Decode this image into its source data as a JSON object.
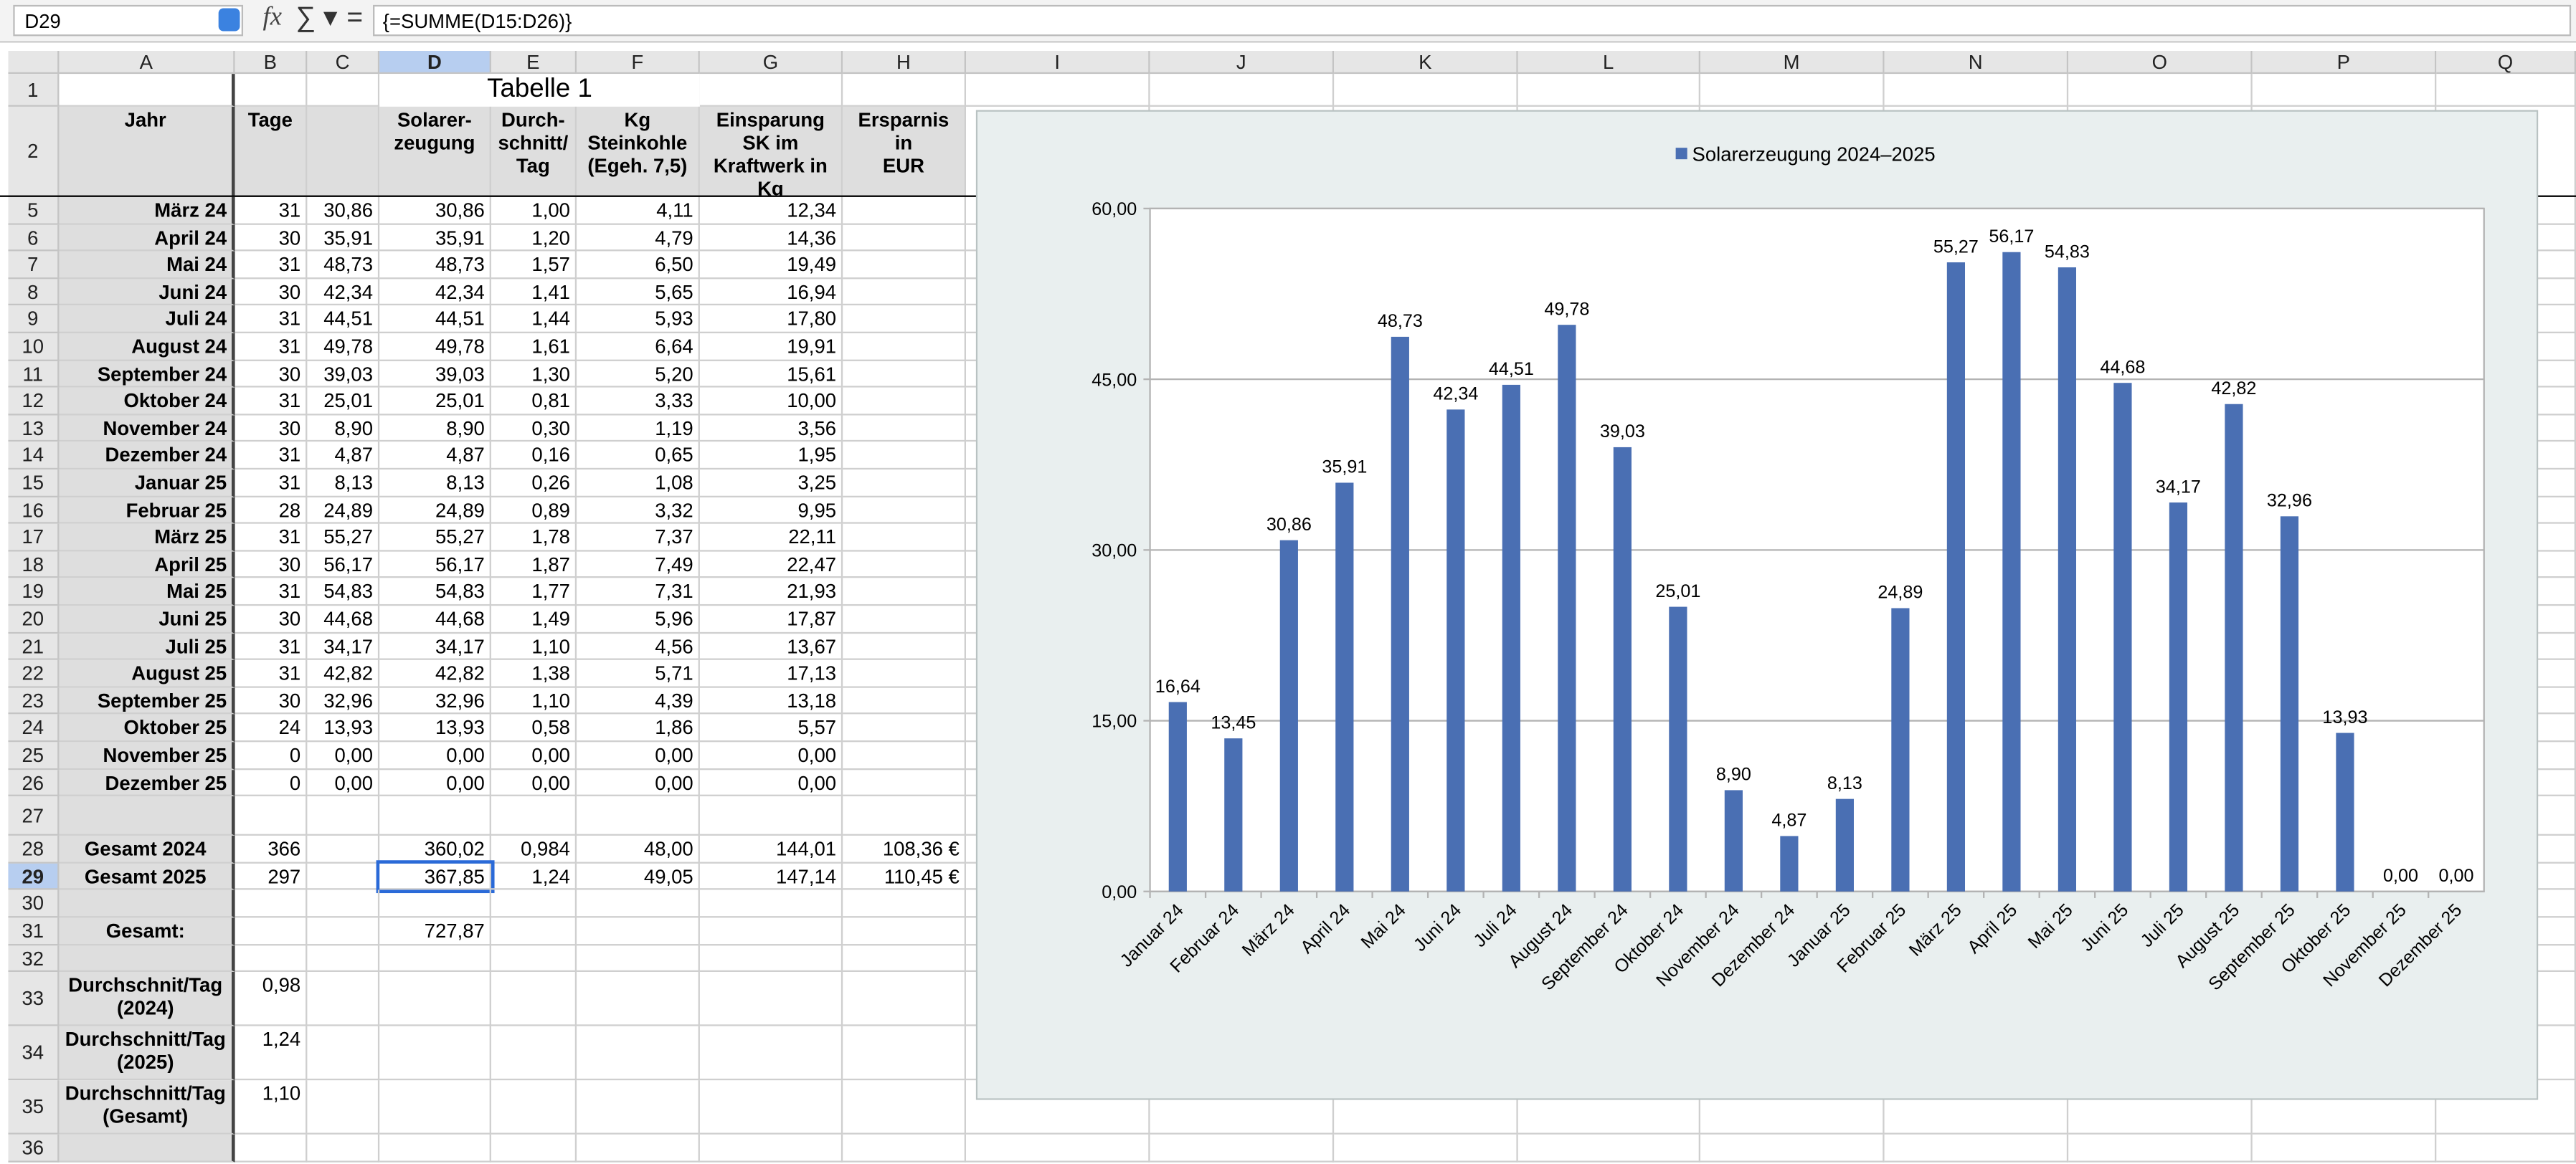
{
  "toolbar": {
    "name_box": "D29",
    "formula": "{=SUMME(D15:D26)}"
  },
  "columns": [
    "A",
    "B",
    "C",
    "D",
    "E",
    "F",
    "G",
    "H",
    "I",
    "J",
    "K",
    "L",
    "M",
    "N",
    "O",
    "P",
    "Q"
  ],
  "rows": [
    {
      "number": 1,
      "title": "Tabelle 1"
    },
    {
      "number": 2,
      "cells": [
        "Jahr",
        "Tage",
        null,
        "Solarer-\nzeugung",
        "Durch-\nschnitt/\nTag",
        "Kg\nSteinkohle\n(Egeh. 7,5)",
        "Einsparung\nSK im\nKraftwerk in\nKg",
        "Ersparnis in\nEUR"
      ]
    },
    {
      "number": 5,
      "cells": [
        "März 24",
        "31",
        "30,86",
        "30,86",
        "1,00",
        "4,11",
        "12,34",
        null
      ]
    },
    {
      "number": 6,
      "cells": [
        "April 24",
        "30",
        "35,91",
        "35,91",
        "1,20",
        "4,79",
        "14,36",
        null
      ]
    },
    {
      "number": 7,
      "cells": [
        "Mai 24",
        "31",
        "48,73",
        "48,73",
        "1,57",
        "6,50",
        "19,49",
        null
      ]
    },
    {
      "number": 8,
      "cells": [
        "Juni 24",
        "30",
        "42,34",
        "42,34",
        "1,41",
        "5,65",
        "16,94",
        null
      ]
    },
    {
      "number": 9,
      "cells": [
        "Juli 24",
        "31",
        "44,51",
        "44,51",
        "1,44",
        "5,93",
        "17,80",
        null
      ]
    },
    {
      "number": 10,
      "cells": [
        "August 24",
        "31",
        "49,78",
        "49,78",
        "1,61",
        "6,64",
        "19,91",
        null
      ]
    },
    {
      "number": 11,
      "cells": [
        "September 24",
        "30",
        "39,03",
        "39,03",
        "1,30",
        "5,20",
        "15,61",
        null
      ]
    },
    {
      "number": 12,
      "cells": [
        "Oktober 24",
        "31",
        "25,01",
        "25,01",
        "0,81",
        "3,33",
        "10,00",
        null
      ]
    },
    {
      "number": 13,
      "cells": [
        "November 24",
        "30",
        "8,90",
        "8,90",
        "0,30",
        "1,19",
        "3,56",
        null
      ]
    },
    {
      "number": 14,
      "cells": [
        "Dezember 24",
        "31",
        "4,87",
        "4,87",
        "0,16",
        "0,65",
        "1,95",
        null
      ]
    },
    {
      "number": 15,
      "cells": [
        "Januar 25",
        "31",
        "8,13",
        "8,13",
        "0,26",
        "1,08",
        "3,25",
        null
      ]
    },
    {
      "number": 16,
      "cells": [
        "Februar 25",
        "28",
        "24,89",
        "24,89",
        "0,89",
        "3,32",
        "9,95",
        null
      ]
    },
    {
      "number": 17,
      "cells": [
        "März 25",
        "31",
        "55,27",
        "55,27",
        "1,78",
        "7,37",
        "22,11",
        null
      ]
    },
    {
      "number": 18,
      "cells": [
        "April 25",
        "30",
        "56,17",
        "56,17",
        "1,87",
        "7,49",
        "22,47",
        null
      ]
    },
    {
      "number": 19,
      "cells": [
        "Mai 25",
        "31",
        "54,83",
        "54,83",
        "1,77",
        "7,31",
        "21,93",
        null
      ]
    },
    {
      "number": 20,
      "cells": [
        "Juni 25",
        "30",
        "44,68",
        "44,68",
        "1,49",
        "5,96",
        "17,87",
        null
      ]
    },
    {
      "number": 21,
      "cells": [
        "Juli 25",
        "31",
        "34,17",
        "34,17",
        "1,10",
        "4,56",
        "13,67",
        null
      ]
    },
    {
      "number": 22,
      "cells": [
        "August 25",
        "31",
        "42,82",
        "42,82",
        "1,38",
        "5,71",
        "17,13",
        null
      ]
    },
    {
      "number": 23,
      "cells": [
        "September 25",
        "30",
        "32,96",
        "32,96",
        "1,10",
        "4,39",
        "13,18",
        null
      ]
    },
    {
      "number": 24,
      "cells": [
        "Oktober 25",
        "24",
        "13,93",
        "13,93",
        "0,58",
        "1,86",
        "5,57",
        null
      ]
    },
    {
      "number": 25,
      "cells": [
        "November 25",
        "0",
        "0,00",
        "0,00",
        "0,00",
        "0,00",
        "0,00",
        null
      ]
    },
    {
      "number": 26,
      "cells": [
        "Dezember 25",
        "0",
        "0,00",
        "0,00",
        "0,00",
        "0,00",
        "0,00",
        null
      ]
    },
    {
      "number": 27,
      "cells": [
        null,
        null,
        null,
        null,
        null,
        null,
        null,
        null
      ]
    },
    {
      "number": 28,
      "cells": [
        "Gesamt 2024",
        "366",
        null,
        "360,02",
        "0,984",
        "48,00",
        "144,01",
        "108,36 €"
      ]
    },
    {
      "number": 29,
      "cells": [
        "Gesamt 2025",
        "297",
        null,
        "367,85",
        "1,24",
        "49,05",
        "147,14",
        "110,45 €"
      ]
    },
    {
      "number": 30,
      "cells": [
        null,
        null,
        null,
        null,
        null,
        null,
        null,
        null
      ]
    },
    {
      "number": 31,
      "cells": [
        "Gesamt:",
        null,
        null,
        "727,87",
        null,
        null,
        null,
        null
      ]
    },
    {
      "number": 32,
      "cells": [
        null,
        null,
        null,
        null,
        null,
        null,
        null,
        null
      ]
    },
    {
      "number": 33,
      "cells": [
        "Durchschnit/Tag\n(2024)",
        "0,98",
        null,
        null,
        null,
        null,
        null,
        null
      ]
    },
    {
      "number": 34,
      "cells": [
        "Durchschnitt/Tag\n(2025)",
        "1,24",
        null,
        null,
        null,
        null,
        null,
        null
      ]
    },
    {
      "number": 35,
      "cells": [
        "Durchschnitt/Tag\n(Gesamt)",
        "1,10",
        null,
        null,
        null,
        null,
        null,
        null
      ]
    },
    {
      "number": 36,
      "cells": [
        null,
        null,
        null,
        null,
        null,
        null,
        null,
        null
      ]
    }
  ],
  "chart_data": {
    "type": "bar",
    "categories": [
      "Januar 24",
      "Februar 24",
      "März 24",
      "April 24",
      "Mai 24",
      "Juni 24",
      "Juli 24",
      "August 24",
      "September 24",
      "Oktober 24",
      "November 24",
      "Dezember 24",
      "Januar 25",
      "Februar 25",
      "März 25",
      "April 25",
      "Mai 25",
      "Juni 25",
      "Juli 25",
      "August 25",
      "September 25",
      "Oktober 25",
      "November 25",
      "Dezember 25"
    ],
    "series": [
      {
        "name": "Solarerzeugung 2024–2025",
        "color": "#4a6fb3",
        "values": [
          16.64,
          13.45,
          30.86,
          35.91,
          48.73,
          42.34,
          44.51,
          49.78,
          39.03,
          25.01,
          8.9,
          4.87,
          8.13,
          24.89,
          55.27,
          56.17,
          54.83,
          44.68,
          34.17,
          42.82,
          32.96,
          13.93,
          0,
          0
        ],
        "value_labels": [
          "16,64",
          "13,45",
          "30,86",
          "35,91",
          "48,73",
          "42,34",
          "44,51",
          "49,78",
          "39,03",
          "25,01",
          "8,90",
          "4,87",
          "8,13",
          "24,89",
          "55,27",
          "56,17",
          "54,83",
          "44,68",
          "34,17",
          "42,82",
          "32,96",
          "13,93",
          "0,00",
          "0,00"
        ]
      }
    ],
    "ylim": [
      0,
      60
    ],
    "yticks": [
      {
        "value": 0,
        "label": "0,00"
      },
      {
        "value": 15,
        "label": "15,00"
      },
      {
        "value": 30,
        "label": "30,00"
      },
      {
        "value": 45,
        "label": "45,00"
      },
      {
        "value": 60,
        "label": "60,00"
      }
    ],
    "grid": true,
    "legend": "top"
  }
}
